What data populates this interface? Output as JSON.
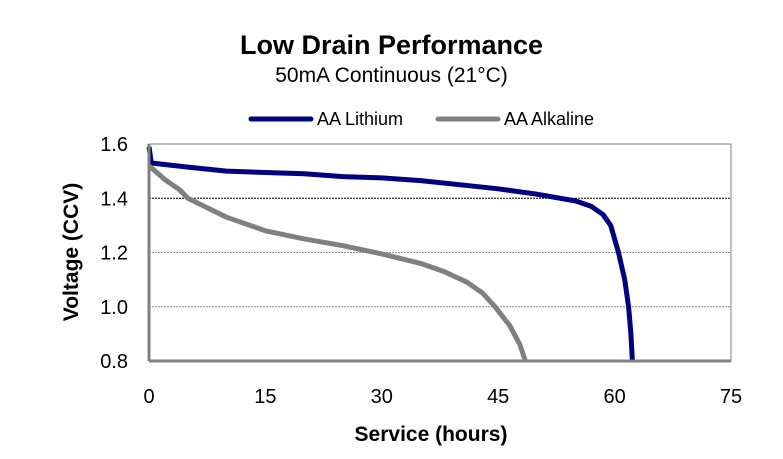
{
  "chart_data": {
    "type": "line",
    "title": "Low Drain Performance",
    "subtitle": "50mA Continuous (21°C)",
    "xlabel": "Service (hours)",
    "ylabel": "Voltage (CCV)",
    "xlim": [
      0,
      75
    ],
    "ylim": [
      0.8,
      1.6
    ],
    "xticks": [
      0,
      15,
      30,
      45,
      60,
      75
    ],
    "yticks": [
      0.8,
      1.0,
      1.2,
      1.4,
      1.6
    ],
    "ytick_labels": [
      "0.8",
      "1.0",
      "1.2",
      "1.4",
      "1.6"
    ],
    "grid": "horizontal dashed",
    "legend": "top-center",
    "series": [
      {
        "name": "AA Lithium",
        "color": "#000080",
        "x": [
          0,
          0.3,
          5,
          10,
          15,
          20,
          25,
          30,
          35,
          40,
          45,
          50,
          55,
          57,
          58.5,
          59.5,
          60.5,
          61.3,
          61.8,
          62.1,
          62.3
        ],
        "y": [
          1.59,
          1.53,
          1.515,
          1.5,
          1.495,
          1.49,
          1.48,
          1.475,
          1.465,
          1.45,
          1.435,
          1.415,
          1.39,
          1.37,
          1.34,
          1.3,
          1.2,
          1.1,
          1.0,
          0.9,
          0.8
        ]
      },
      {
        "name": "AA Alkaline",
        "color": "#808080",
        "x": [
          0,
          2,
          4,
          5,
          10,
          15,
          20,
          25,
          30,
          35,
          38,
          41,
          43,
          44.6,
          46.5,
          47.8,
          48.5
        ],
        "y": [
          1.52,
          1.47,
          1.43,
          1.4,
          1.33,
          1.28,
          1.25,
          1.225,
          1.195,
          1.16,
          1.13,
          1.09,
          1.05,
          1.0,
          0.93,
          0.86,
          0.8
        ]
      }
    ]
  }
}
